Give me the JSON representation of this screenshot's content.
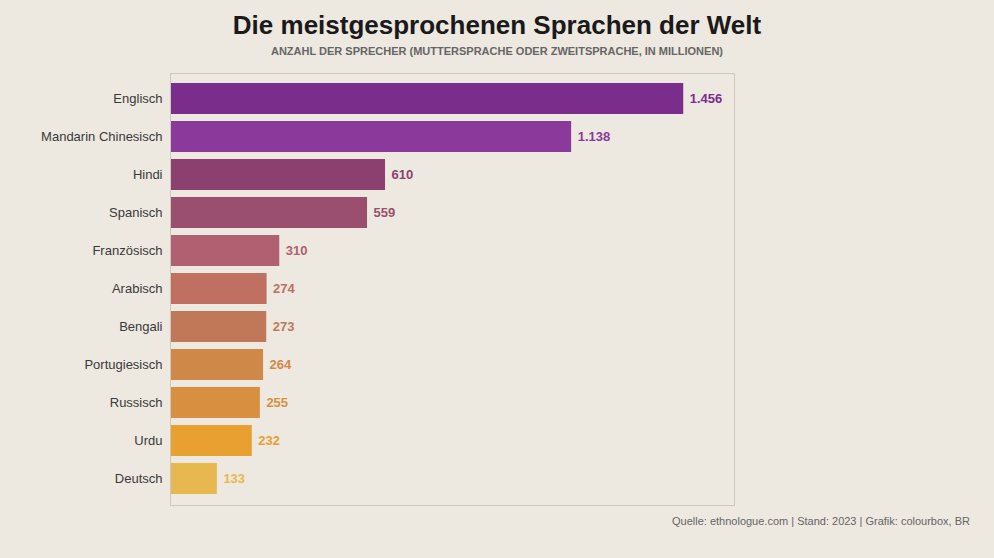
{
  "chart_data": {
    "type": "bar",
    "orientation": "horizontal",
    "title": "Die meistgesprochenen Sprachen der Welt",
    "subtitle": "ANZAHL DER SPRECHER (MUTTERSPRACHE ODER ZWEITSPRACHE, IN MILLIONEN)",
    "annotations": [
      "Quelle: ethnologue.com | Stand: 2023 | Grafik: colourbox, BR"
    ],
    "categories": [
      "Englisch",
      "Mandarin Chinesisch",
      "Hindi",
      "Spanisch",
      "Französisch",
      "Arabisch",
      "Bengali",
      "Portugiesisch",
      "Russisch",
      "Urdu",
      "Deutsch"
    ],
    "values": [
      1456,
      1138,
      610,
      559,
      310,
      274,
      273,
      264,
      255,
      232,
      133
    ],
    "value_labels": [
      "1.456",
      "1.138",
      "610",
      "559",
      "310",
      "274",
      "273",
      "264",
      "255",
      "232",
      "133"
    ],
    "colors": [
      "#7b2d8b",
      "#8b3a9b",
      "#8b4070",
      "#9b4f6e",
      "#b06070",
      "#c07060",
      "#c07858",
      "#d08848",
      "#d89040",
      "#e8a030",
      "#e8b850"
    ],
    "xlim": [
      0,
      1600
    ],
    "data_labels": true,
    "tick_labels": "y",
    "grid": false
  }
}
